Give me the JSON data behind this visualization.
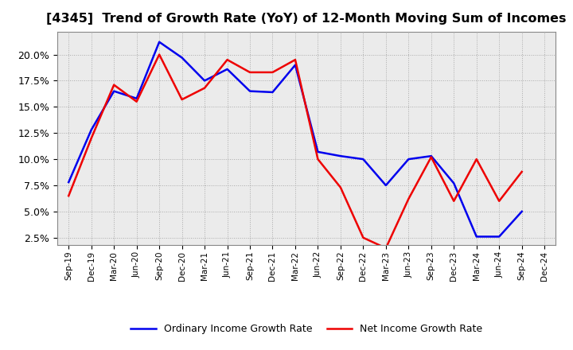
{
  "title": "[4345]  Trend of Growth Rate (YoY) of 12-Month Moving Sum of Incomes",
  "title_fontsize": 11.5,
  "labels": [
    "Sep-19",
    "Dec-19",
    "Mar-20",
    "Jun-20",
    "Sep-20",
    "Dec-20",
    "Mar-21",
    "Jun-21",
    "Sep-21",
    "Dec-21",
    "Mar-22",
    "Jun-22",
    "Sep-22",
    "Dec-22",
    "Mar-23",
    "Jun-23",
    "Sep-23",
    "Dec-23",
    "Mar-24",
    "Jun-24",
    "Sep-24",
    "Dec-24"
  ],
  "ordinary_income": [
    0.078,
    0.128,
    0.165,
    0.158,
    0.212,
    0.197,
    0.175,
    0.186,
    0.165,
    0.164,
    0.19,
    0.107,
    0.103,
    0.1,
    0.075,
    0.1,
    0.103,
    0.077,
    0.026,
    0.026,
    0.05,
    null
  ],
  "net_income": [
    0.065,
    0.12,
    0.171,
    0.155,
    0.2,
    0.157,
    0.168,
    0.195,
    0.183,
    0.183,
    0.195,
    0.1,
    0.073,
    0.025,
    0.015,
    0.062,
    0.102,
    0.06,
    0.1,
    0.06,
    0.088,
    null
  ],
  "ordinary_color": "#0000ee",
  "net_color": "#ee0000",
  "background_color": "#ffffff",
  "plot_bg_color": "#ebebeb",
  "grid_color": "#aaaaaa",
  "ylim_min": 0.018,
  "ylim_max": 0.222,
  "yticks": [
    0.025,
    0.05,
    0.075,
    0.1,
    0.125,
    0.15,
    0.175,
    0.2
  ],
  "legend_ordinary": "Ordinary Income Growth Rate",
  "legend_net": "Net Income Growth Rate",
  "linewidth": 1.8
}
